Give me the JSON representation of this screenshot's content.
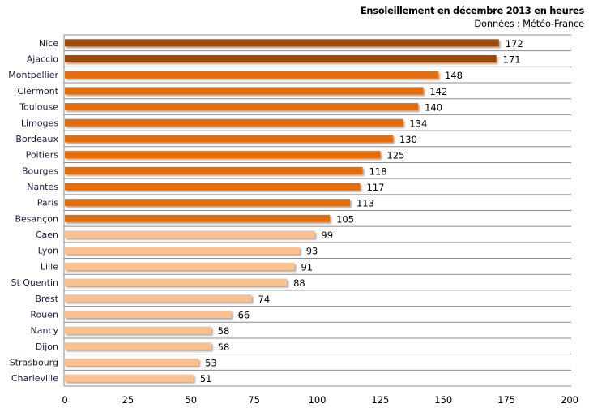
{
  "chart_data": {
    "type": "bar",
    "orientation": "horizontal",
    "title": "Ensoleillement  en décembre 2013 en heures",
    "subtitle": "Données : Météo-France",
    "categories": [
      "Nice",
      "Ajaccio",
      "Montpellier",
      "Clermont",
      "Toulouse",
      "Limoges",
      "Bordeaux",
      "Poitiers",
      "Bourges",
      "Nantes",
      "Paris",
      "Besançon",
      "Caen",
      "Lyon",
      "Lille",
      "St Quentin",
      "Brest",
      "Rouen",
      "Nancy",
      "Dijon",
      "Strasbourg",
      "Charleville"
    ],
    "values": [
      172,
      171,
      148,
      142,
      140,
      134,
      130,
      125,
      118,
      117,
      113,
      105,
      99,
      93,
      91,
      88,
      74,
      66,
      58,
      58,
      53,
      51
    ],
    "xlim": [
      0,
      200
    ],
    "xticks": [
      0,
      25,
      50,
      75,
      100,
      125,
      150,
      175,
      200
    ],
    "grid": "horizontal row separators",
    "legend": "none",
    "colors": {
      "high": "#9c4a0a",
      "mid": "#e36c0a",
      "low": "#fac090"
    },
    "color_groups": {
      "high_min": 150,
      "mid_min": 100
    }
  }
}
